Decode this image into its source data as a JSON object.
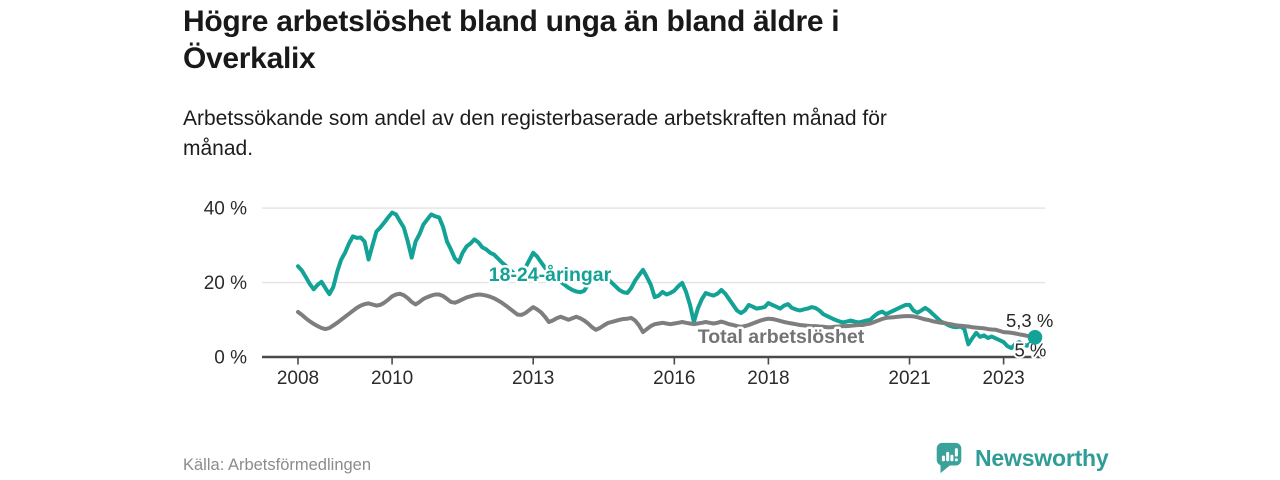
{
  "title": "Högre arbetslöshet bland unga än bland äldre i Överkalix",
  "subtitle": "Arbetssökande som andel av den registerbaserade arbetskraften månad för månad.",
  "source": "Källa: Arbetsförmedlingen",
  "brand": {
    "name": "Newsworthy",
    "icon": "newsworthy-chart-bubble-icon",
    "color": "#3aa19b"
  },
  "colors": {
    "youth_series": "#13a296",
    "total_series": "#7e7e7e",
    "total_label": "#737373",
    "gridline": "#e3e3e3",
    "axis": "#4a4a4a",
    "tick_text": "#2b2b2b",
    "end_label_text": "#282828"
  },
  "chart_data": {
    "type": "line",
    "title": "Högre arbetslöshet bland unga än bland äldre i Överkalix",
    "xlabel": "",
    "ylabel": "",
    "unit": "%",
    "frequency": "monthly",
    "x_start": "2008-01",
    "x_end": "2023-09",
    "ylim": [
      0,
      42
    ],
    "grid": "horizontal",
    "legend": "inline-labels",
    "yticks": [
      {
        "value": 0,
        "label": "0 %"
      },
      {
        "value": 20,
        "label": "20 %"
      },
      {
        "value": 40,
        "label": "40 %"
      }
    ],
    "xticks": [
      {
        "year": 2008,
        "label": "2008"
      },
      {
        "year": 2010,
        "label": "2010"
      },
      {
        "year": 2013,
        "label": "2013"
      },
      {
        "year": 2016,
        "label": "2016"
      },
      {
        "year": 2018,
        "label": "2018"
      },
      {
        "year": 2021,
        "label": "2021"
      },
      {
        "year": 2023,
        "label": "2023"
      }
    ],
    "series": [
      {
        "name": "18-24-åringar",
        "color": "#13a296",
        "end_label": "5,3 %",
        "end_value": 5.3,
        "values": [
          24.4,
          23.2,
          21.5,
          19.6,
          18.2,
          19.4,
          20.2,
          18.5,
          16.9,
          18.8,
          22.9,
          26.1,
          28,
          30.5,
          32.4,
          32,
          32.1,
          31,
          26.2,
          30,
          33.7,
          34.8,
          36.1,
          37.5,
          38.8,
          38.3,
          36.5,
          34.8,
          31,
          26.7,
          31,
          33,
          35.6,
          37,
          38.3,
          37.8,
          37.5,
          35,
          31,
          28.9,
          26.5,
          25.4,
          28,
          29.7,
          30.5,
          31.6,
          30.8,
          29.5,
          28.9,
          28,
          27.5,
          26.5,
          25.4,
          24.5,
          23.5,
          22.5,
          22,
          22.5,
          24,
          26,
          28,
          27,
          25.5,
          24,
          22.8,
          21.8,
          21,
          20.2,
          19.4,
          18.6,
          18,
          17.6,
          17.4,
          17.8,
          19.5,
          21,
          22.5,
          23,
          22,
          21,
          20,
          19,
          18,
          17.4,
          17.2,
          18.5,
          20.5,
          22,
          23.4,
          21.5,
          19.4,
          16.1,
          16.5,
          17.5,
          16.8,
          17.2,
          17.8,
          19,
          19.9,
          17.5,
          14,
          9.4,
          13,
          15.5,
          17.2,
          16.8,
          16.5,
          17,
          18,
          17,
          15.5,
          14,
          12.5,
          11.8,
          12.5,
          14,
          13.5,
          13,
          13.2,
          13.4,
          14.5,
          14,
          13.5,
          13,
          13.8,
          14.2,
          13.2,
          12.8,
          12.5,
          12.8,
          13,
          13.4,
          13.2,
          12.5,
          11.5,
          11,
          10.5,
          10,
          9.6,
          9.3,
          9.5,
          9.8,
          9.5,
          9.3,
          9.5,
          9.8,
          10,
          11,
          11.8,
          12.2,
          11.5,
          12,
          12.5,
          13,
          13.5,
          14,
          14,
          12.5,
          11.9,
          12.5,
          13.2,
          12.5,
          11.5,
          10.5,
          9.5,
          9.1,
          8.5,
          8.1,
          8,
          8.2,
          7.5,
          3.4,
          5,
          6.5,
          5.4,
          5.8,
          5.1,
          5.5,
          5,
          4.5,
          4,
          2.9,
          2.4,
          3.5,
          4,
          3.4,
          3,
          3.8,
          5.3
        ]
      },
      {
        "name": "Total arbetslöshet",
        "color": "#7e7e7e",
        "end_label": "5 %",
        "end_value": 5.0,
        "values": [
          12.1,
          11.3,
          10.4,
          9.6,
          8.9,
          8.3,
          7.8,
          7.5,
          7.8,
          8.5,
          9.2,
          10,
          10.8,
          11.6,
          12.4,
          13.2,
          13.8,
          14.2,
          14.4,
          14.1,
          13.8,
          14,
          14.6,
          15.4,
          16.3,
          16.8,
          17,
          16.6,
          15.8,
          14.8,
          14.1,
          14.8,
          15.6,
          16.1,
          16.5,
          16.8,
          16.8,
          16.4,
          15.6,
          14.8,
          14.6,
          15,
          15.5,
          16,
          16.3,
          16.6,
          16.8,
          16.7,
          16.5,
          16.2,
          15.8,
          15.2,
          14.6,
          13.8,
          13,
          12.2,
          11.4,
          11.3,
          11.8,
          12.6,
          13.4,
          12.8,
          12,
          10.8,
          9.4,
          9.8,
          10.4,
          10.8,
          10.4,
          10,
          10.4,
          10.8,
          10.4,
          9.8,
          9,
          8,
          7.3,
          7.8,
          8.5,
          9.1,
          9.4,
          9.7,
          10,
          10.2,
          10.3,
          10.5,
          9.8,
          8.5,
          6.7,
          7.5,
          8.3,
          8.8,
          9,
          9.2,
          9,
          8.8,
          9,
          9.2,
          9.4,
          9.2,
          9,
          8.8,
          9,
          9.2,
          9.4,
          9.2,
          9,
          9.2,
          9.5,
          9.2,
          8.8,
          8.6,
          8.3,
          8.1,
          8.3,
          8.6,
          9,
          9.4,
          9.8,
          10.1,
          10.3,
          10.2,
          10,
          9.7,
          9.4,
          9.2,
          9,
          8.8,
          8.6,
          8.5,
          8.4,
          8.3,
          8.3,
          8.2,
          8.1,
          8,
          8,
          8.1,
          8.2,
          8.3,
          8.3,
          8.4,
          8.5,
          8.6,
          8.6,
          8.8,
          9,
          9.4,
          9.8,
          10.2,
          10.5,
          10.6,
          10.7,
          10.8,
          10.9,
          11,
          11,
          10.9,
          10.7,
          10.4,
          10.1,
          9.9,
          9.6,
          9.4,
          9.2,
          9.1,
          8.9,
          8.7,
          8.5,
          8.4,
          8.3,
          8.2,
          8,
          7.9,
          7.8,
          7.7,
          7.5,
          7.4,
          7.3,
          7,
          6.7,
          6.6,
          6.5,
          6.3,
          6.1,
          5.9,
          5.7,
          5.5,
          5
        ]
      }
    ]
  }
}
